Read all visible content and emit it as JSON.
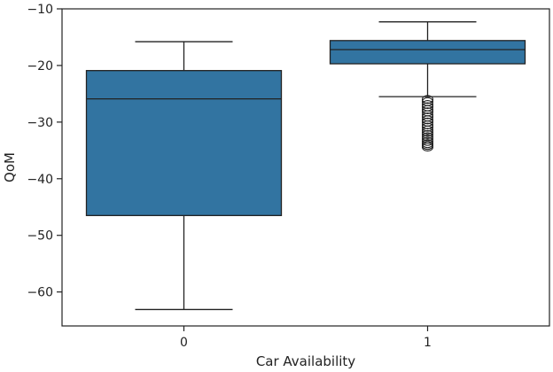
{
  "chart_data": {
    "type": "box",
    "xlabel": "Car Availability",
    "ylabel": "QoM",
    "categories": [
      "0",
      "1"
    ],
    "ylim": [
      -66,
      -10
    ],
    "yticks": [
      -10,
      -20,
      -30,
      -40,
      -50,
      -60
    ],
    "grid": false,
    "box_color": "#3274a1",
    "line_color": "#222222",
    "boxes": [
      {
        "category": "0",
        "whisker_low": -63.1,
        "q1": -46.5,
        "median": -25.9,
        "q3": -20.9,
        "whisker_high": -15.8,
        "outliers": []
      },
      {
        "category": "1",
        "whisker_low": -25.5,
        "q1": -19.7,
        "median": -17.2,
        "q3": -15.6,
        "whisker_high": -12.3,
        "outliers": [
          -26.0,
          -26.4,
          -26.9,
          -27.3,
          -27.8,
          -28.2,
          -28.7,
          -29.1,
          -29.6,
          -30.0,
          -30.5,
          -30.9,
          -31.4,
          -31.8,
          -32.2,
          -32.6,
          -33.0,
          -33.4,
          -33.8,
          -34.1,
          -34.4
        ]
      }
    ]
  }
}
